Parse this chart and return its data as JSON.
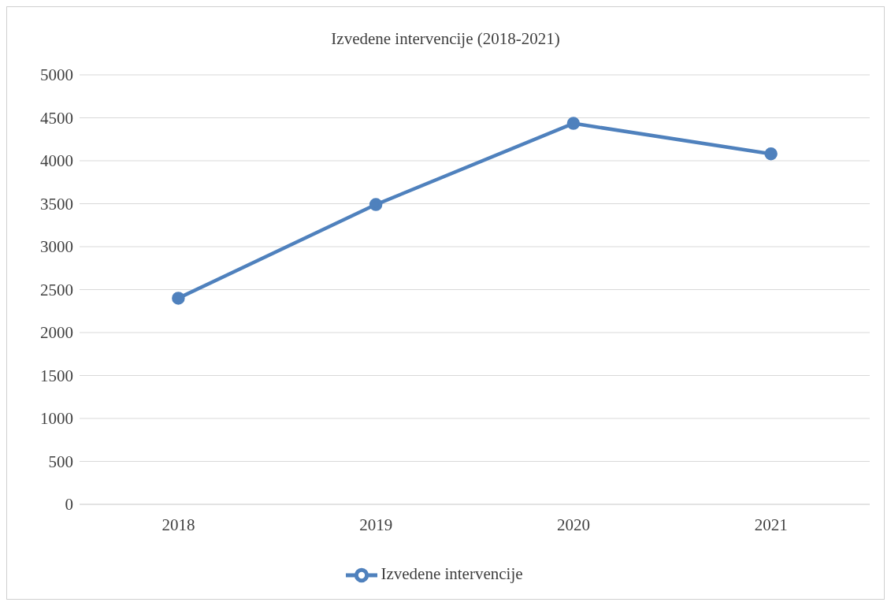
{
  "chart_data": {
    "type": "line",
    "title": "Izvedene intervencije (2018-2021)",
    "categories": [
      "2018",
      "2019",
      "2020",
      "2021"
    ],
    "series": [
      {
        "name": "Izvedene intervencije",
        "color": "#4f81bd",
        "values": [
          2400,
          3490,
          4435,
          4080
        ]
      }
    ],
    "ylim": [
      0,
      5000
    ],
    "yticks": [
      0,
      500,
      1000,
      1500,
      2000,
      2500,
      3000,
      3500,
      4000,
      4500,
      5000
    ],
    "grid": "y",
    "legend": "bottom",
    "marker": "circle",
    "line_style": "solid"
  }
}
